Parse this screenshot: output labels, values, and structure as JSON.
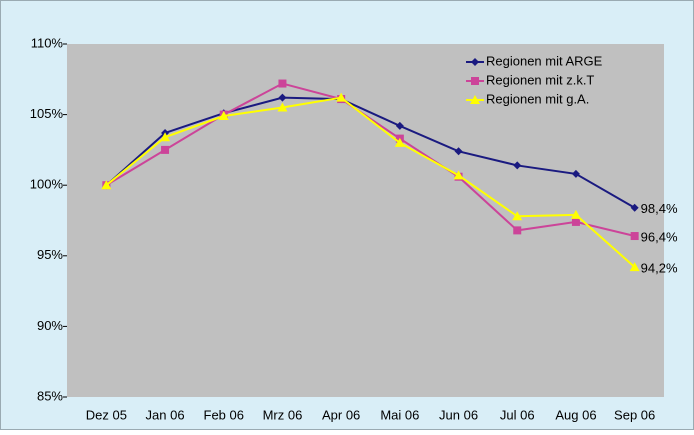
{
  "chart_data": {
    "type": "line",
    "categories": [
      "Dez 05",
      "Jan 06",
      "Feb 06",
      "Mrz 06",
      "Apr 06",
      "Mai 06",
      "Jun 06",
      "Jul 06",
      "Aug 06",
      "Sep 06"
    ],
    "series": [
      {
        "name": "Regionen mit ARGE",
        "color": "#1a1a80",
        "marker": "diamond",
        "values": [
          100,
          103.7,
          105.1,
          106.2,
          106.1,
          104.2,
          102.4,
          101.4,
          100.8,
          98.4
        ],
        "value_labels": [
          null,
          null,
          null,
          null,
          null,
          null,
          null,
          null,
          null,
          "98,4%"
        ]
      },
      {
        "name": "Regionen mit z.k.T",
        "color": "#cc4499",
        "marker": "square",
        "values": [
          100,
          102.5,
          105.0,
          107.2,
          106.1,
          103.3,
          100.6,
          96.8,
          97.4,
          96.4
        ],
        "value_labels": [
          null,
          null,
          null,
          null,
          null,
          null,
          null,
          null,
          null,
          "96,4%"
        ]
      },
      {
        "name": "Regionen mit g.A.",
        "color": "#ffff00",
        "marker": "triangle",
        "values": [
          100,
          103.4,
          104.9,
          105.5,
          106.2,
          103.0,
          100.7,
          97.8,
          97.9,
          94.2
        ],
        "value_labels": [
          null,
          null,
          null,
          null,
          null,
          null,
          null,
          null,
          null,
          "94,2%"
        ]
      }
    ],
    "ylim": [
      85,
      110
    ],
    "yticks": [
      {
        "value": 85,
        "label": "85%"
      },
      {
        "value": 90,
        "label": "90%"
      },
      {
        "value": 95,
        "label": "95%"
      },
      {
        "value": 100,
        "label": "100%"
      },
      {
        "value": 105,
        "label": "105%"
      },
      {
        "value": 110,
        "label": "110%"
      }
    ],
    "legend": "top-right"
  }
}
